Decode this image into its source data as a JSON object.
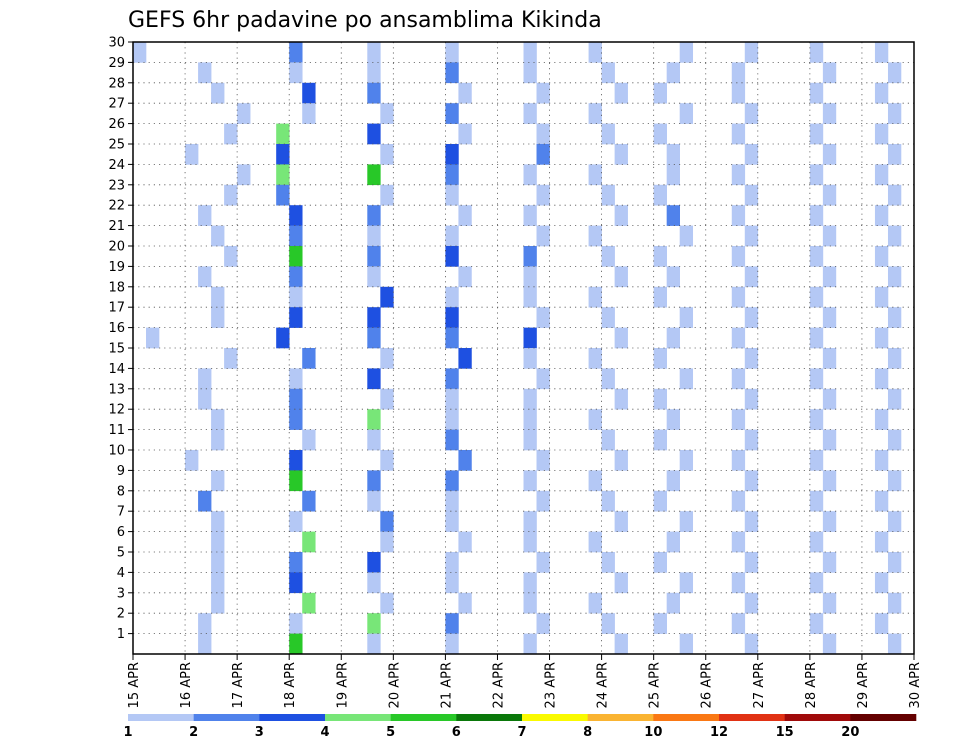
{
  "chart_data": {
    "type": "heatmap",
    "title": "GEFS 6hr padavine po ansamblima Kikinda",
    "x_tick_labels": [
      "15 APR",
      "16 APR",
      "17 APR",
      "18 APR",
      "19 APR",
      "20 APR",
      "21 APR",
      "22 APR",
      "23 APR",
      "24 APR",
      "25 APR",
      "26 APR",
      "27 APR",
      "28 APR",
      "29 APR",
      "30 APR"
    ],
    "y_tick_labels": [
      "1",
      "2",
      "3",
      "4",
      "5",
      "6",
      "7",
      "8",
      "9",
      "10",
      "11",
      "12",
      "13",
      "14",
      "15",
      "16",
      "17",
      "18",
      "19",
      "20",
      "21",
      "22",
      "23",
      "24",
      "25",
      "26",
      "27",
      "28",
      "29",
      "30"
    ],
    "x_range_days": [
      0,
      15
    ],
    "steps_per_day": 4,
    "members": 30,
    "grid": true,
    "legend": "bottom colorbar",
    "colorbar": {
      "levels": [
        "1",
        "2",
        "3",
        "4",
        "5",
        "6",
        "7",
        "8",
        "10",
        "12",
        "15",
        "20"
      ],
      "colors": [
        "#b4c8f5",
        "#5082eb",
        "#1e50e1",
        "#78e678",
        "#28c828",
        "#0a780a",
        "#fafa00",
        "#fab432",
        "#fa7814",
        "#e13214",
        "#a00a0a",
        "#640000"
      ]
    },
    "cells": [
      [
        30,
        0,
        1
      ],
      [
        29,
        5,
        1
      ],
      [
        28,
        6,
        1
      ],
      [
        27,
        8,
        1
      ],
      [
        26,
        7,
        1
      ],
      [
        24,
        8,
        1
      ],
      [
        23,
        7,
        1
      ],
      [
        21,
        6,
        1
      ],
      [
        19,
        5,
        1
      ],
      [
        18,
        6,
        1
      ],
      [
        17,
        6,
        1
      ],
      [
        16,
        1,
        1
      ],
      [
        14,
        5,
        1
      ],
      [
        12,
        6,
        1
      ],
      [
        9,
        6,
        1
      ],
      [
        8,
        5,
        2
      ],
      [
        6,
        6,
        1
      ],
      [
        5,
        6,
        1
      ],
      [
        4,
        6,
        1
      ],
      [
        3,
        6,
        1
      ],
      [
        2,
        5,
        1
      ],
      [
        1,
        5,
        1
      ],
      [
        20,
        7,
        1
      ],
      [
        11,
        6,
        1
      ],
      [
        15,
        7,
        1
      ],
      [
        13,
        5,
        1
      ],
      [
        10,
        4,
        1
      ],
      [
        7,
        6,
        1
      ],
      [
        25,
        4,
        1
      ],
      [
        22,
        5,
        1
      ],
      [
        30,
        12,
        2
      ],
      [
        29,
        12,
        1
      ],
      [
        28,
        13,
        3
      ],
      [
        27,
        13,
        1
      ],
      [
        26,
        11,
        4
      ],
      [
        25,
        11,
        3
      ],
      [
        24,
        11,
        4
      ],
      [
        23,
        11,
        2
      ],
      [
        22,
        12,
        3
      ],
      [
        21,
        12,
        2
      ],
      [
        20,
        12,
        5
      ],
      [
        19,
        12,
        2
      ],
      [
        18,
        12,
        1
      ],
      [
        17,
        12,
        3
      ],
      [
        16,
        11,
        3
      ],
      [
        15,
        13,
        2
      ],
      [
        14,
        12,
        1
      ],
      [
        13,
        12,
        2
      ],
      [
        12,
        12,
        2
      ],
      [
        11,
        13,
        1
      ],
      [
        10,
        12,
        3
      ],
      [
        9,
        12,
        5
      ],
      [
        8,
        13,
        2
      ],
      [
        7,
        12,
        1
      ],
      [
        6,
        13,
        4
      ],
      [
        5,
        12,
        2
      ],
      [
        4,
        12,
        3
      ],
      [
        3,
        13,
        4
      ],
      [
        2,
        12,
        1
      ],
      [
        1,
        12,
        5
      ],
      [
        30,
        18,
        1
      ],
      [
        29,
        18,
        1
      ],
      [
        28,
        18,
        2
      ],
      [
        27,
        19,
        1
      ],
      [
        26,
        18,
        3
      ],
      [
        25,
        19,
        1
      ],
      [
        24,
        18,
        5
      ],
      [
        23,
        19,
        1
      ],
      [
        22,
        18,
        2
      ],
      [
        21,
        18,
        1
      ],
      [
        20,
        18,
        2
      ],
      [
        19,
        18,
        1
      ],
      [
        18,
        19,
        3
      ],
      [
        17,
        18,
        3
      ],
      [
        16,
        18,
        2
      ],
      [
        15,
        19,
        1
      ],
      [
        14,
        18,
        3
      ],
      [
        13,
        19,
        1
      ],
      [
        12,
        18,
        4
      ],
      [
        11,
        18,
        1
      ],
      [
        10,
        19,
        1
      ],
      [
        9,
        18,
        2
      ],
      [
        8,
        18,
        1
      ],
      [
        7,
        19,
        2
      ],
      [
        6,
        19,
        1
      ],
      [
        5,
        18,
        3
      ],
      [
        4,
        18,
        1
      ],
      [
        3,
        19,
        1
      ],
      [
        2,
        18,
        4
      ],
      [
        1,
        18,
        1
      ],
      [
        30,
        24,
        1
      ],
      [
        29,
        24,
        2
      ],
      [
        28,
        25,
        1
      ],
      [
        27,
        24,
        2
      ],
      [
        26,
        25,
        1
      ],
      [
        25,
        24,
        3
      ],
      [
        24,
        24,
        2
      ],
      [
        23,
        24,
        1
      ],
      [
        22,
        25,
        1
      ],
      [
        21,
        24,
        1
      ],
      [
        20,
        24,
        3
      ],
      [
        19,
        25,
        1
      ],
      [
        18,
        24,
        1
      ],
      [
        17,
        24,
        3
      ],
      [
        16,
        24,
        2
      ],
      [
        15,
        25,
        3
      ],
      [
        14,
        24,
        2
      ],
      [
        13,
        24,
        1
      ],
      [
        12,
        24,
        1
      ],
      [
        11,
        24,
        2
      ],
      [
        10,
        25,
        2
      ],
      [
        9,
        24,
        2
      ],
      [
        8,
        24,
        1
      ],
      [
        7,
        24,
        1
      ],
      [
        6,
        25,
        1
      ],
      [
        5,
        24,
        1
      ],
      [
        4,
        24,
        1
      ],
      [
        3,
        25,
        1
      ],
      [
        2,
        24,
        2
      ],
      [
        1,
        24,
        1
      ],
      [
        30,
        30,
        1
      ],
      [
        29,
        30,
        1
      ],
      [
        28,
        31,
        1
      ],
      [
        27,
        30,
        1
      ],
      [
        26,
        31,
        1
      ],
      [
        25,
        31,
        2
      ],
      [
        24,
        30,
        1
      ],
      [
        23,
        31,
        1
      ],
      [
        22,
        30,
        1
      ],
      [
        21,
        31,
        1
      ],
      [
        20,
        30,
        2
      ],
      [
        19,
        30,
        1
      ],
      [
        18,
        30,
        1
      ],
      [
        17,
        31,
        1
      ],
      [
        16,
        30,
        3
      ],
      [
        15,
        30,
        1
      ],
      [
        14,
        31,
        1
      ],
      [
        13,
        30,
        1
      ],
      [
        12,
        30,
        1
      ],
      [
        11,
        30,
        1
      ],
      [
        10,
        31,
        1
      ],
      [
        9,
        30,
        1
      ],
      [
        8,
        31,
        1
      ],
      [
        7,
        30,
        1
      ],
      [
        6,
        30,
        1
      ],
      [
        5,
        31,
        1
      ],
      [
        4,
        30,
        1
      ],
      [
        3,
        30,
        1
      ],
      [
        2,
        31,
        1
      ],
      [
        1,
        30,
        1
      ],
      [
        30,
        35,
        1
      ],
      [
        29,
        36,
        1
      ],
      [
        28,
        37,
        1
      ],
      [
        27,
        35,
        1
      ],
      [
        26,
        36,
        1
      ],
      [
        25,
        37,
        1
      ],
      [
        24,
        35,
        1
      ],
      [
        23,
        36,
        1
      ],
      [
        22,
        37,
        1
      ],
      [
        21,
        35,
        1
      ],
      [
        20,
        36,
        1
      ],
      [
        19,
        37,
        1
      ],
      [
        18,
        35,
        1
      ],
      [
        17,
        36,
        1
      ],
      [
        16,
        37,
        1
      ],
      [
        15,
        35,
        1
      ],
      [
        14,
        36,
        1
      ],
      [
        13,
        37,
        1
      ],
      [
        12,
        35,
        1
      ],
      [
        11,
        36,
        1
      ],
      [
        10,
        37,
        1
      ],
      [
        9,
        35,
        1
      ],
      [
        8,
        36,
        1
      ],
      [
        7,
        37,
        1
      ],
      [
        6,
        35,
        1
      ],
      [
        5,
        36,
        1
      ],
      [
        4,
        37,
        1
      ],
      [
        3,
        35,
        1
      ],
      [
        2,
        36,
        1
      ],
      [
        1,
        37,
        1
      ],
      [
        30,
        42,
        1
      ],
      [
        29,
        41,
        1
      ],
      [
        28,
        40,
        1
      ],
      [
        27,
        42,
        1
      ],
      [
        26,
        40,
        1
      ],
      [
        25,
        41,
        1
      ],
      [
        24,
        41,
        1
      ],
      [
        23,
        40,
        1
      ],
      [
        22,
        41,
        2
      ],
      [
        21,
        42,
        1
      ],
      [
        20,
        40,
        1
      ],
      [
        19,
        41,
        1
      ],
      [
        18,
        40,
        1
      ],
      [
        17,
        42,
        1
      ],
      [
        16,
        41,
        1
      ],
      [
        15,
        40,
        1
      ],
      [
        14,
        42,
        1
      ],
      [
        13,
        40,
        1
      ],
      [
        12,
        41,
        1
      ],
      [
        11,
        40,
        1
      ],
      [
        10,
        42,
        1
      ],
      [
        9,
        41,
        1
      ],
      [
        8,
        40,
        1
      ],
      [
        7,
        42,
        1
      ],
      [
        6,
        41,
        1
      ],
      [
        5,
        40,
        1
      ],
      [
        4,
        42,
        1
      ],
      [
        3,
        41,
        1
      ],
      [
        2,
        40,
        1
      ],
      [
        1,
        42,
        1
      ],
      [
        30,
        47,
        1
      ],
      [
        29,
        46,
        1
      ],
      [
        28,
        46,
        1
      ],
      [
        27,
        47,
        1
      ],
      [
        26,
        46,
        1
      ],
      [
        25,
        47,
        1
      ],
      [
        24,
        46,
        1
      ],
      [
        23,
        47,
        1
      ],
      [
        22,
        46,
        1
      ],
      [
        21,
        47,
        1
      ],
      [
        20,
        46,
        1
      ],
      [
        19,
        47,
        1
      ],
      [
        18,
        46,
        1
      ],
      [
        17,
        47,
        1
      ],
      [
        16,
        46,
        1
      ],
      [
        15,
        47,
        1
      ],
      [
        14,
        46,
        1
      ],
      [
        13,
        47,
        1
      ],
      [
        12,
        46,
        1
      ],
      [
        11,
        47,
        1
      ],
      [
        10,
        46,
        1
      ],
      [
        9,
        47,
        1
      ],
      [
        8,
        46,
        1
      ],
      [
        7,
        47,
        1
      ],
      [
        6,
        46,
        1
      ],
      [
        5,
        47,
        1
      ],
      [
        4,
        46,
        1
      ],
      [
        3,
        47,
        1
      ],
      [
        2,
        46,
        1
      ],
      [
        1,
        47,
        1
      ],
      [
        30,
        52,
        1
      ],
      [
        29,
        53,
        1
      ],
      [
        28,
        52,
        1
      ],
      [
        27,
        53,
        1
      ],
      [
        26,
        52,
        1
      ],
      [
        25,
        53,
        1
      ],
      [
        24,
        52,
        1
      ],
      [
        23,
        53,
        1
      ],
      [
        22,
        52,
        1
      ],
      [
        21,
        53,
        1
      ],
      [
        20,
        52,
        1
      ],
      [
        19,
        53,
        1
      ],
      [
        18,
        52,
        1
      ],
      [
        17,
        53,
        1
      ],
      [
        16,
        52,
        1
      ],
      [
        15,
        53,
        1
      ],
      [
        14,
        52,
        1
      ],
      [
        13,
        53,
        1
      ],
      [
        12,
        52,
        1
      ],
      [
        11,
        53,
        1
      ],
      [
        10,
        52,
        1
      ],
      [
        9,
        53,
        1
      ],
      [
        8,
        52,
        1
      ],
      [
        7,
        53,
        1
      ],
      [
        6,
        52,
        1
      ],
      [
        5,
        53,
        1
      ],
      [
        4,
        52,
        1
      ],
      [
        3,
        53,
        1
      ],
      [
        2,
        52,
        1
      ],
      [
        1,
        53,
        1
      ],
      [
        30,
        57,
        1
      ],
      [
        29,
        58,
        1
      ],
      [
        28,
        57,
        1
      ],
      [
        27,
        58,
        1
      ],
      [
        26,
        57,
        1
      ],
      [
        25,
        58,
        1
      ],
      [
        24,
        57,
        1
      ],
      [
        23,
        58,
        1
      ],
      [
        22,
        57,
        1
      ],
      [
        21,
        58,
        1
      ],
      [
        20,
        57,
        1
      ],
      [
        19,
        58,
        1
      ],
      [
        18,
        57,
        1
      ],
      [
        17,
        58,
        1
      ],
      [
        16,
        57,
        1
      ],
      [
        15,
        58,
        1
      ],
      [
        14,
        57,
        1
      ],
      [
        13,
        58,
        1
      ],
      [
        12,
        57,
        1
      ],
      [
        11,
        58,
        1
      ],
      [
        10,
        57,
        1
      ],
      [
        9,
        58,
        1
      ],
      [
        8,
        57,
        1
      ],
      [
        7,
        58,
        1
      ],
      [
        6,
        57,
        1
      ],
      [
        5,
        58,
        1
      ],
      [
        4,
        57,
        1
      ],
      [
        3,
        58,
        1
      ],
      [
        2,
        57,
        1
      ],
      [
        1,
        58,
        1
      ]
    ]
  }
}
